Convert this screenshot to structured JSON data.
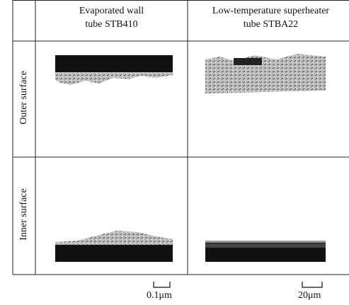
{
  "header": {
    "columns": [
      {
        "lines": [
          "Evaporated wall",
          "tube STB410"
        ]
      },
      {
        "lines": [
          "Low-temperature superheater",
          "tube STBA22"
        ]
      }
    ]
  },
  "rows": [
    {
      "label": "Outer surface"
    },
    {
      "label": "Inner surface"
    }
  ],
  "scale_bars": [
    "0.1μm",
    "20μm"
  ]
}
